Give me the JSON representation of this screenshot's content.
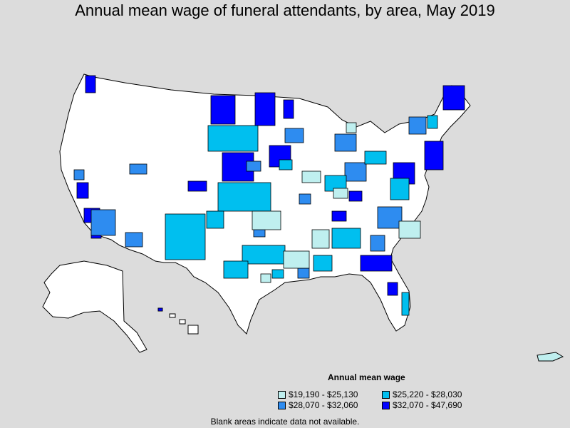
{
  "title": "Annual mean wage of funeral attendants, by area, May 2019",
  "legend": {
    "title": "Annual mean wage",
    "items": [
      {
        "label": "$19,190 - $25,130",
        "color": "#bfefef"
      },
      {
        "label": "$25,220 - $28,030",
        "color": "#00bfef"
      },
      {
        "label": "$28,070 - $32,060",
        "color": "#2e8cf0"
      },
      {
        "label": "$32,070 - $47,690",
        "color": "#0000ff"
      }
    ]
  },
  "footnote": "Blank areas indicate data not available.",
  "colors": {
    "background": "#dcdcdc",
    "land_no_data": "#ffffff",
    "border": "#000000"
  }
}
